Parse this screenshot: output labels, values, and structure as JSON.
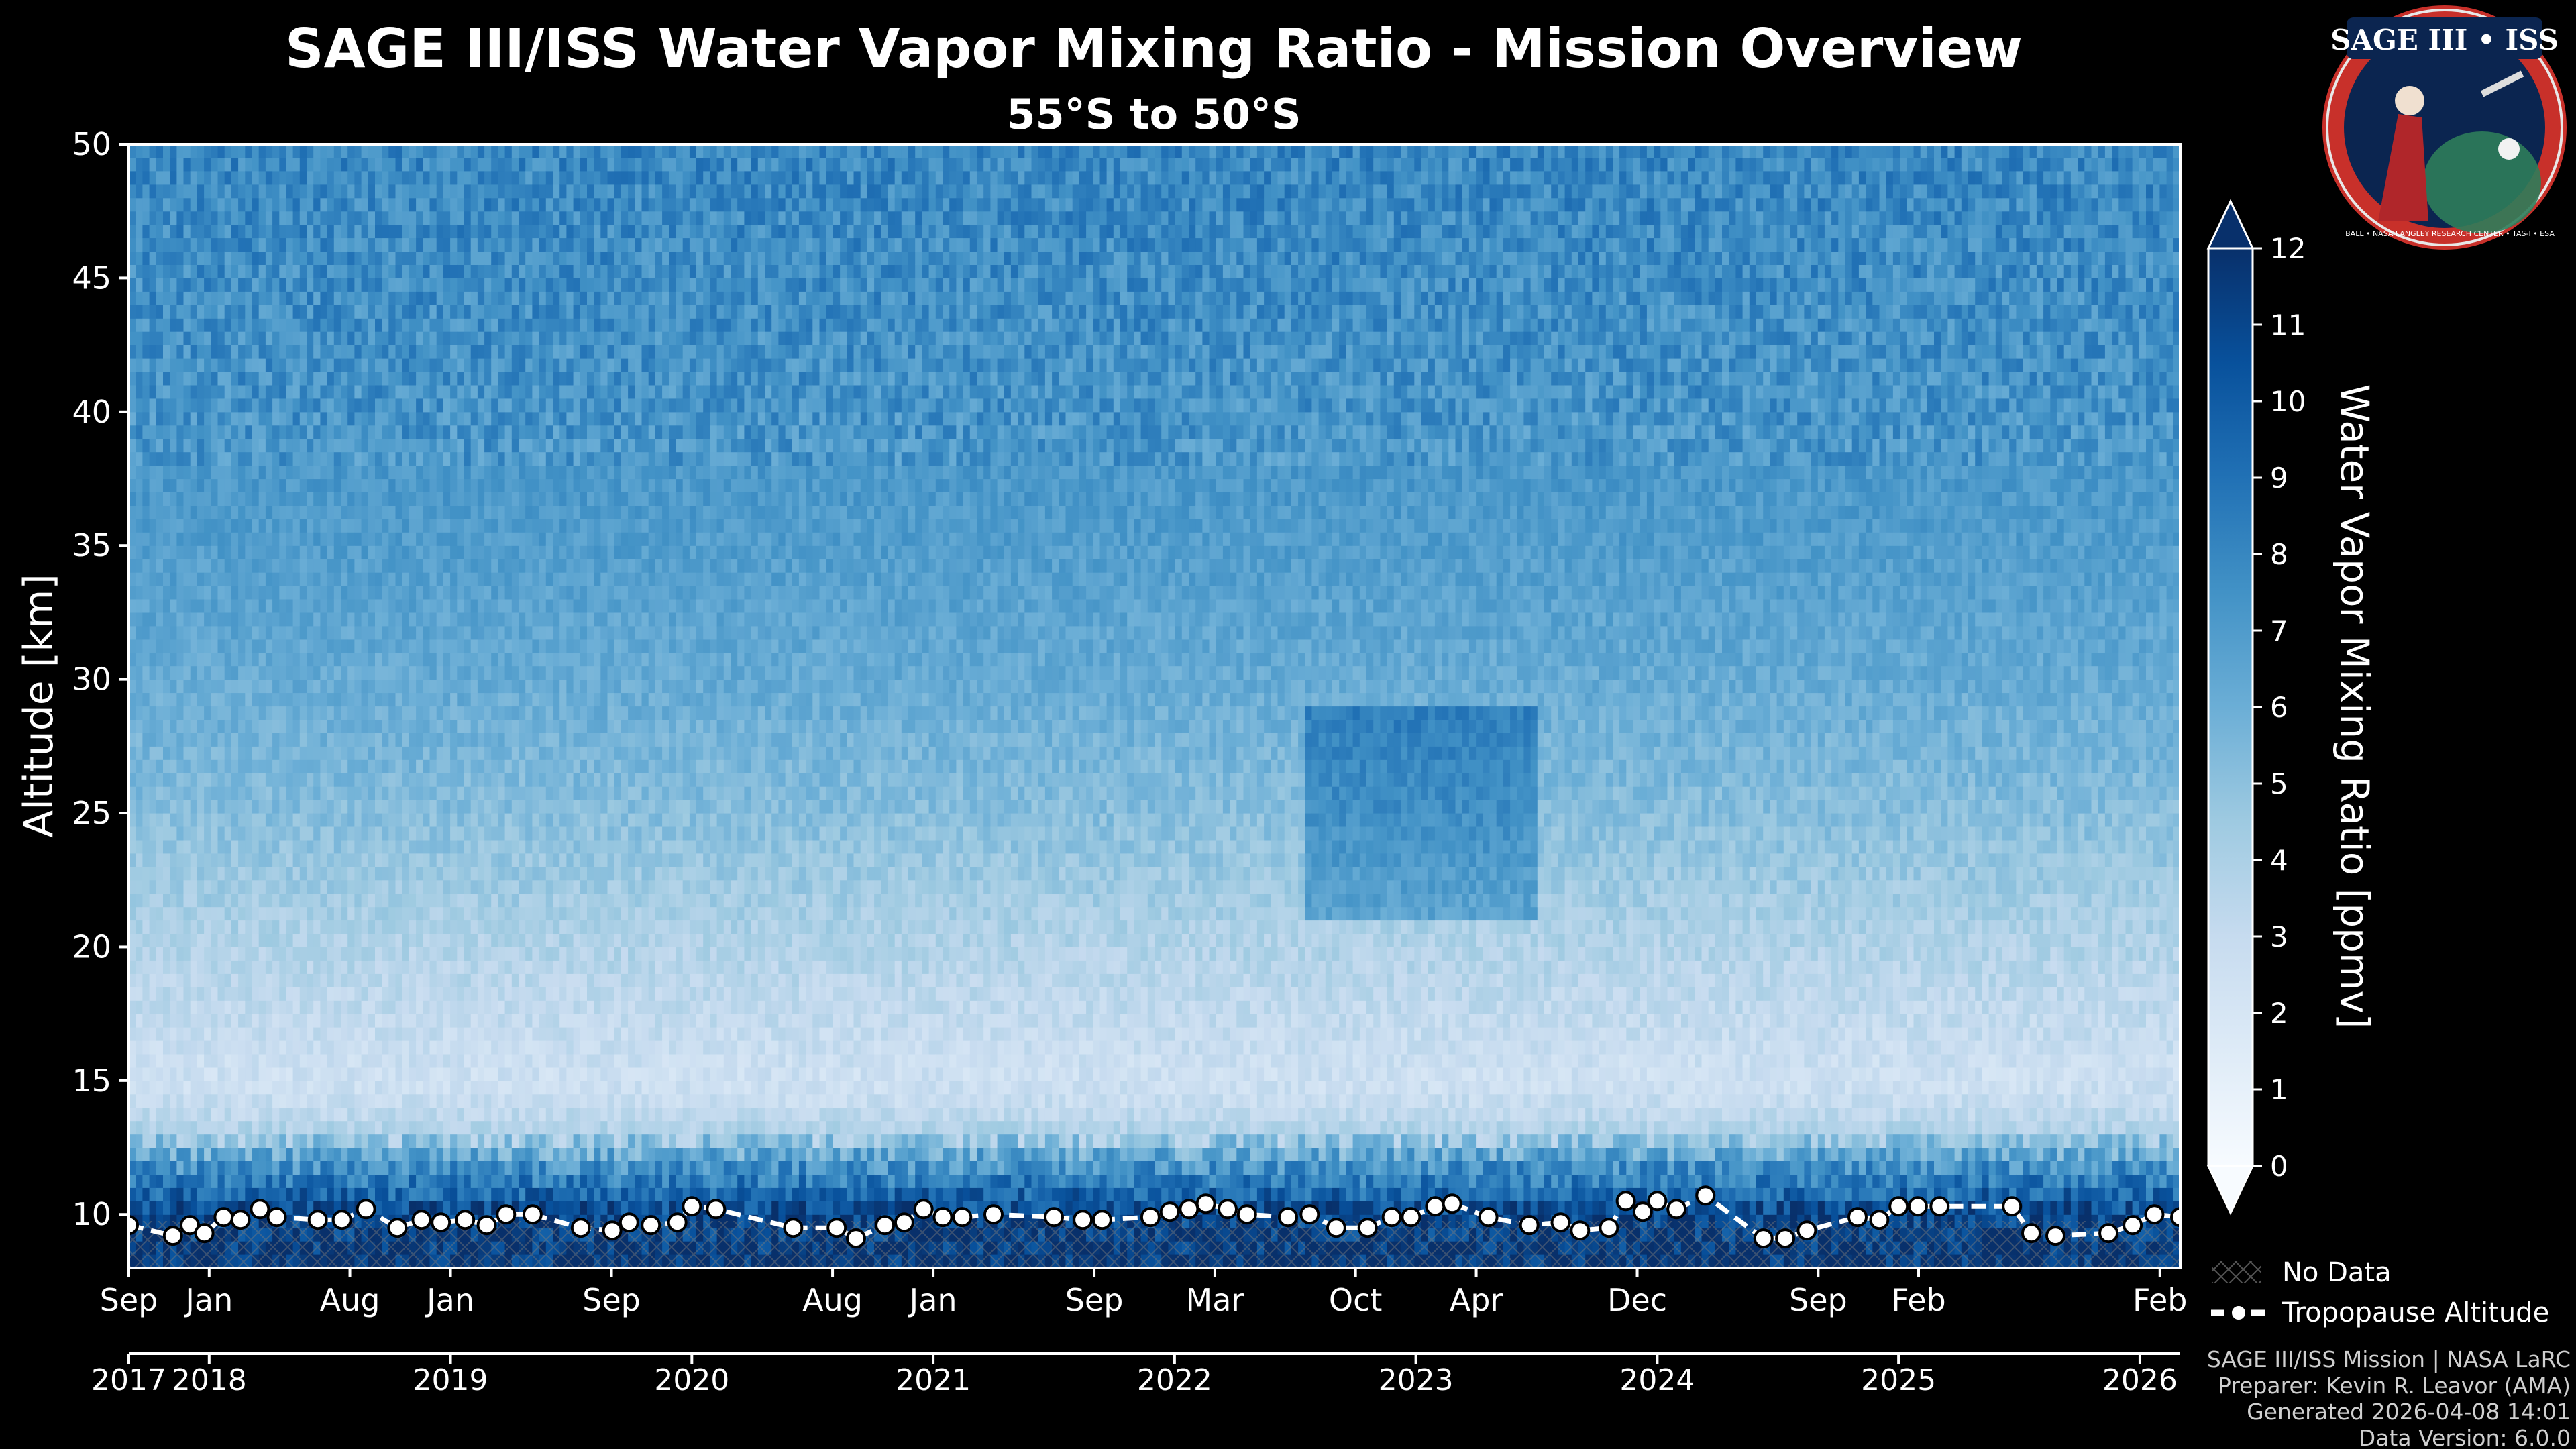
{
  "chart_data": {
    "type": "heatmap",
    "title": "SAGE III/ISS Water Vapor Mixing Ratio - Mission Overview",
    "subtitle": "55°S to 50°S",
    "ylabel": "Altitude [km]",
    "ylim": [
      8,
      50
    ],
    "yticks": [
      10,
      15,
      20,
      25,
      30,
      35,
      40,
      45,
      50
    ],
    "x_range": [
      2017.667,
      2026.167
    ],
    "month_ticks": [
      {
        "label": "Sep",
        "x": 2017.667
      },
      {
        "label": "Jan",
        "x": 2018.0
      },
      {
        "label": "Aug",
        "x": 2018.583
      },
      {
        "label": "Jan",
        "x": 2019.0
      },
      {
        "label": "Sep",
        "x": 2019.667
      },
      {
        "label": "Aug",
        "x": 2020.583
      },
      {
        "label": "Jan",
        "x": 2021.0
      },
      {
        "label": "Sep",
        "x": 2021.667
      },
      {
        "label": "Mar",
        "x": 2022.167
      },
      {
        "label": "Oct",
        "x": 2022.75
      },
      {
        "label": "Apr",
        "x": 2023.25
      },
      {
        "label": "Dec",
        "x": 2023.917
      },
      {
        "label": "Sep",
        "x": 2024.667
      },
      {
        "label": "Feb",
        "x": 2025.083
      },
      {
        "label": "Feb",
        "x": 2026.083
      }
    ],
    "year_ticks": [
      {
        "label": "2017",
        "x": 2017.667
      },
      {
        "label": "2018",
        "x": 2018.0
      },
      {
        "label": "2019",
        "x": 2019.0
      },
      {
        "label": "2020",
        "x": 2020.0
      },
      {
        "label": "2021",
        "x": 2021.0
      },
      {
        "label": "2022",
        "x": 2022.0
      },
      {
        "label": "2023",
        "x": 2023.0
      },
      {
        "label": "2024",
        "x": 2024.0
      },
      {
        "label": "2025",
        "x": 2025.0
      },
      {
        "label": "2026",
        "x": 2026.0
      }
    ],
    "colorbar": {
      "label": "Water Vapor Mixing Ratio [ppmv]",
      "min": 0,
      "max": 12,
      "ticks": [
        0,
        1,
        2,
        3,
        4,
        5,
        6,
        7,
        8,
        9,
        10,
        11,
        12
      ]
    },
    "mixing_ratio_profile": {
      "altitudes_km": [
        8,
        10,
        12,
        13,
        14,
        15,
        17,
        20,
        23,
        25,
        28,
        30,
        35,
        40,
        45,
        50
      ],
      "ppmv": [
        12,
        11,
        7,
        4,
        3,
        2.5,
        3,
        3.8,
        4.6,
        5.2,
        5.8,
        6.2,
        6.9,
        7.4,
        7.7,
        8
      ]
    },
    "wet_anomaly": {
      "x_start": 2022.55,
      "x_end": 2023.5,
      "alt_low_km": 21,
      "alt_high_km": 29,
      "extra_ppmv": 2.4
    },
    "legend": [
      {
        "label": "No Data",
        "symbol": "hatch"
      },
      {
        "label": "Tropopause Altitude",
        "symbol": "dashed-line-circle"
      }
    ],
    "legend_position": "bottom-right",
    "series": [
      {
        "name": "Tropopause Altitude",
        "x": [
          2017.667,
          2017.85,
          2017.92,
          2017.98,
          2018.06,
          2018.13,
          2018.21,
          2018.28,
          2018.45,
          2018.55,
          2018.65,
          2018.78,
          2018.88,
          2018.96,
          2019.06,
          2019.15,
          2019.23,
          2019.34,
          2019.54,
          2019.67,
          2019.74,
          2019.83,
          2019.94,
          2020.0,
          2020.1,
          2020.42,
          2020.6,
          2020.68,
          2020.8,
          2020.88,
          2020.96,
          2021.04,
          2021.12,
          2021.25,
          2021.5,
          2021.62,
          2021.7,
          2021.9,
          2021.98,
          2022.06,
          2022.13,
          2022.22,
          2022.3,
          2022.47,
          2022.56,
          2022.67,
          2022.8,
          2022.9,
          2022.98,
          2023.08,
          2023.15,
          2023.3,
          2023.47,
          2023.6,
          2023.68,
          2023.8,
          2023.87,
          2023.94,
          2024.0,
          2024.08,
          2024.2,
          2024.44,
          2024.53,
          2024.62,
          2024.83,
          2024.92,
          2025.0,
          2025.08,
          2025.17,
          2025.47,
          2025.55,
          2025.65,
          2025.87,
          2025.97,
          2026.06,
          2026.167
        ],
        "y": [
          9.6,
          9.2,
          9.6,
          9.3,
          9.9,
          9.8,
          10.2,
          9.9,
          9.8,
          9.8,
          10.2,
          9.5,
          9.8,
          9.7,
          9.8,
          9.6,
          10.0,
          10.0,
          9.5,
          9.4,
          9.7,
          9.6,
          9.7,
          10.3,
          10.2,
          9.5,
          9.5,
          9.1,
          9.6,
          9.7,
          10.2,
          9.9,
          9.9,
          10.0,
          9.9,
          9.8,
          9.8,
          9.9,
          10.1,
          10.2,
          10.4,
          10.2,
          10.0,
          9.9,
          10.0,
          9.5,
          9.5,
          9.9,
          9.9,
          10.3,
          10.4,
          9.9,
          9.6,
          9.7,
          9.4,
          9.5,
          10.5,
          10.1,
          10.5,
          10.2,
          10.7,
          9.1,
          9.1,
          9.4,
          9.9,
          9.8,
          10.3,
          10.3,
          10.3,
          10.3,
          9.3,
          9.2,
          9.3,
          9.6,
          10.0,
          9.9
        ]
      }
    ]
  },
  "logo": {
    "text": "SAGE III • ISS",
    "ring_text": "BALL • NASA LANGLEY RESEARCH CENTER • TAS-I • ESA"
  },
  "footer": {
    "line1": "SAGE III/ISS Mission | NASA LaRC",
    "line2": "Preparer: Kevin R. Leavor (AMA)",
    "line3": "Generated 2026-04-08 14:01",
    "line4": "Data Version: 6.0.0"
  }
}
